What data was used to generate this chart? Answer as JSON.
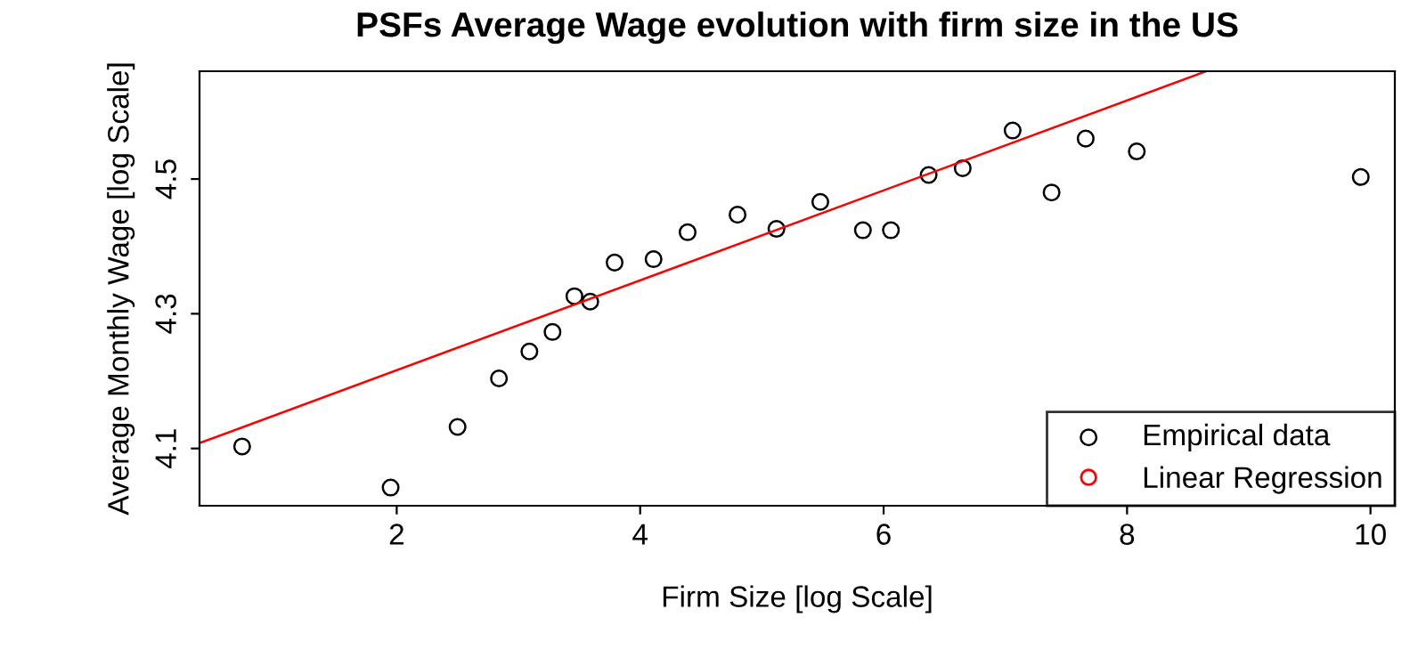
{
  "chart_data": {
    "type": "scatter",
    "title": "PSFs Average Wage evolution with firm size in the US",
    "xlabel": "Firm Size [log Scale]",
    "ylabel": "Average Monthly Wage [log Scale]",
    "series": [
      {
        "name": "Empirical data",
        "type": "scatter",
        "color": "#000000",
        "marker": "circle",
        "x": [
          0.73,
          1.95,
          2.5,
          2.84,
          3.09,
          3.28,
          3.46,
          3.59,
          3.79,
          4.11,
          4.39,
          4.8,
          5.12,
          5.48,
          5.83,
          6.06,
          6.37,
          6.65,
          7.06,
          7.38,
          7.66,
          8.08,
          9.92
        ],
        "values": [
          4.103,
          4.042,
          4.132,
          4.204,
          4.244,
          4.273,
          4.326,
          4.318,
          4.376,
          4.381,
          4.421,
          4.447,
          4.426,
          4.466,
          4.424,
          4.424,
          4.506,
          4.516,
          4.572,
          4.48,
          4.56,
          4.541,
          4.503
        ]
      },
      {
        "name": "Linear Regression",
        "type": "line",
        "color": "#ff0000",
        "marker": "none",
        "x": [
          0.38,
          8.65
        ],
        "values": [
          4.108,
          4.66
        ]
      }
    ],
    "xlim": [
      0.38,
      10.2
    ],
    "ylim": [
      4.015,
      4.66
    ],
    "xticks": [
      2,
      4,
      6,
      8,
      10
    ],
    "yticks": [
      4.1,
      4.3,
      4.5
    ],
    "grid": false,
    "legend": "bottom right"
  }
}
